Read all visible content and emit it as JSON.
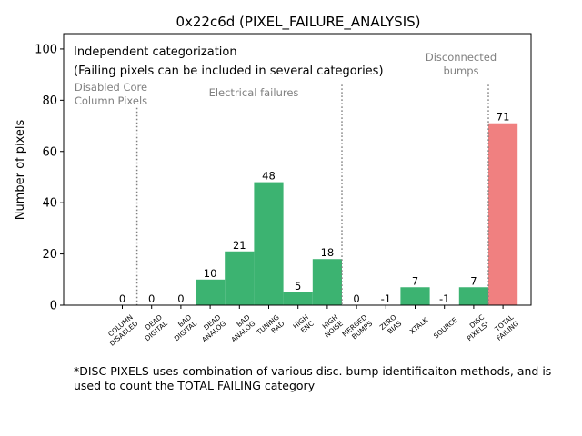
{
  "chart_data": {
    "type": "bar",
    "title": "0x22c6d (PIXEL_FAILURE_ANALYSIS)",
    "ylabel": "Number of pixels",
    "xlabel": "",
    "ylim": [
      0,
      106
    ],
    "yticks": [
      0,
      20,
      40,
      60,
      80,
      100
    ],
    "categories": [
      {
        "line1": "COLUMN",
        "line2": "DISABLED"
      },
      {
        "line1": "DEAD",
        "line2": "DIGITAL"
      },
      {
        "line1": "BAD",
        "line2": "DIGITAL"
      },
      {
        "line1": "DEAD",
        "line2": "ANALOG"
      },
      {
        "line1": "BAD",
        "line2": "ANALOG"
      },
      {
        "line1": "TUNING",
        "line2": "BAD"
      },
      {
        "line1": "HIGH",
        "line2": "ENC"
      },
      {
        "line1": "HIGH",
        "line2": "NOISE"
      },
      {
        "line1": "MERGED",
        "line2": "BUMPS"
      },
      {
        "line1": "ZERO",
        "line2": "BIAS"
      },
      {
        "line1": "XTALK",
        "line2": ""
      },
      {
        "line1": "SOURCE",
        "line2": ""
      },
      {
        "line1": "DISC",
        "line2": "PIXELS*"
      },
      {
        "line1": "TOTAL",
        "line2": "FAILING"
      }
    ],
    "values": [
      0,
      0,
      0,
      10,
      21,
      48,
      5,
      18,
      0,
      -1,
      7,
      -1,
      7,
      71
    ],
    "bar_colors": [
      "#3cb371",
      "#3cb371",
      "#3cb371",
      "#3cb371",
      "#3cb371",
      "#3cb371",
      "#3cb371",
      "#3cb371",
      "#3cb371",
      "#3cb371",
      "#3cb371",
      "#3cb371",
      "#3cb371",
      "#f08080"
    ],
    "annotations": {
      "header_line1": "Independent categorization",
      "header_line2": "(Failing pixels can be included in several categories)",
      "group1": {
        "line1": "Disabled Core",
        "line2": "Column Pixels"
      },
      "group2": "Electrical failures",
      "group3": {
        "line1": "Disconnected",
        "line2": "bumps"
      }
    }
  },
  "footnote": "*DISC PIXELS uses combination of various disc. bump identificaiton methods, and is\nused to count the TOTAL FAILING category",
  "colors": {
    "bar": "#3cb371",
    "total": "#f08080",
    "separator": "#808080",
    "group_text": "#808080"
  }
}
